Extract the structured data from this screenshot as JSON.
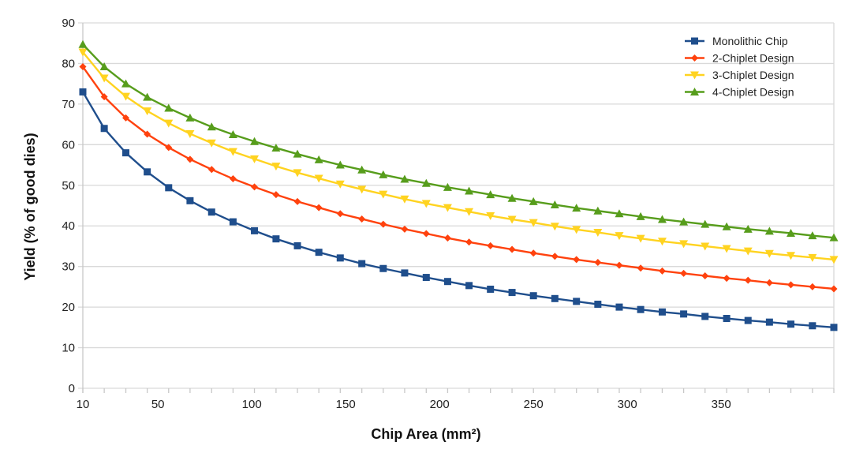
{
  "chart_data": {
    "type": "line",
    "title": "",
    "xlabel": "Chip Area (mm²)",
    "ylabel": "Yield (% of good dies)",
    "xlim": [
      10,
      410
    ],
    "ylim": [
      0,
      90
    ],
    "xticks": [
      "10",
      "50",
      "100",
      "150",
      "200",
      "250",
      "300",
      "350"
    ],
    "xtick_values": [
      10,
      50,
      100,
      150,
      200,
      250,
      300,
      350
    ],
    "yticks": [
      "0",
      "10",
      "20",
      "30",
      "40",
      "50",
      "60",
      "70",
      "80",
      "90"
    ],
    "grid": true,
    "legend_position": "top-right",
    "x": [
      10,
      21.4,
      32.9,
      44.3,
      55.7,
      67.1,
      78.6,
      90,
      101.4,
      112.9,
      124.3,
      135.7,
      147.1,
      158.6,
      170,
      181.4,
      192.9,
      204.3,
      215.7,
      227.1,
      238.6,
      250,
      261.4,
      272.9,
      284.3,
      295.7,
      307.1,
      318.6,
      330,
      341.4,
      352.9,
      364.3,
      375.7,
      387.1,
      398.6,
      410
    ],
    "series": [
      {
        "name": "Monolithic Chip",
        "color": "#1f4e8c",
        "marker": "square",
        "values": [
          73,
          64,
          58,
          53.3,
          49.4,
          46.2,
          43.4,
          41,
          38.8,
          36.8,
          35.1,
          33.5,
          32.1,
          30.7,
          29.5,
          28.4,
          27.3,
          26.3,
          25.3,
          24.4,
          23.6,
          22.8,
          22.1,
          21.4,
          20.7,
          20.0,
          19.4,
          18.8,
          18.3,
          17.7,
          17.2,
          16.7,
          16.3,
          15.8,
          15.4,
          15.0
        ]
      },
      {
        "name": "2-Chiplet Design",
        "color": "#ff420e",
        "marker": "diamond",
        "values": [
          79.2,
          71.8,
          66.6,
          62.6,
          59.3,
          56.4,
          53.9,
          51.6,
          49.6,
          47.7,
          46.0,
          44.5,
          43.0,
          41.7,
          40.4,
          39.2,
          38.1,
          37.0,
          36.0,
          35.1,
          34.2,
          33.3,
          32.5,
          31.7,
          31.0,
          30.3,
          29.6,
          28.9,
          28.3,
          27.7,
          27.1,
          26.6,
          26.0,
          25.5,
          25.0,
          24.5
        ]
      },
      {
        "name": "3-Chiplet Design",
        "color": "#ffd320",
        "marker": "triangle-down",
        "values": [
          82.8,
          76.4,
          71.9,
          68.3,
          65.3,
          62.7,
          60.4,
          58.3,
          56.5,
          54.7,
          53.1,
          51.7,
          50.3,
          49.0,
          47.8,
          46.6,
          45.5,
          44.5,
          43.5,
          42.5,
          41.6,
          40.8,
          39.9,
          39.1,
          38.4,
          37.6,
          36.9,
          36.2,
          35.6,
          35.0,
          34.4,
          33.8,
          33.2,
          32.7,
          32.2,
          31.7
        ]
      },
      {
        "name": "4-Chiplet Design",
        "color": "#579d1c",
        "marker": "triangle-up",
        "values": [
          84.7,
          79.2,
          75.0,
          71.7,
          69.0,
          66.6,
          64.4,
          62.5,
          60.8,
          59.2,
          57.7,
          56.3,
          55.0,
          53.8,
          52.6,
          51.5,
          50.5,
          49.5,
          48.6,
          47.7,
          46.8,
          46.0,
          45.2,
          44.4,
          43.7,
          43.0,
          42.3,
          41.6,
          41.0,
          40.4,
          39.8,
          39.2,
          38.7,
          38.2,
          37.6,
          37.1
        ]
      }
    ]
  }
}
